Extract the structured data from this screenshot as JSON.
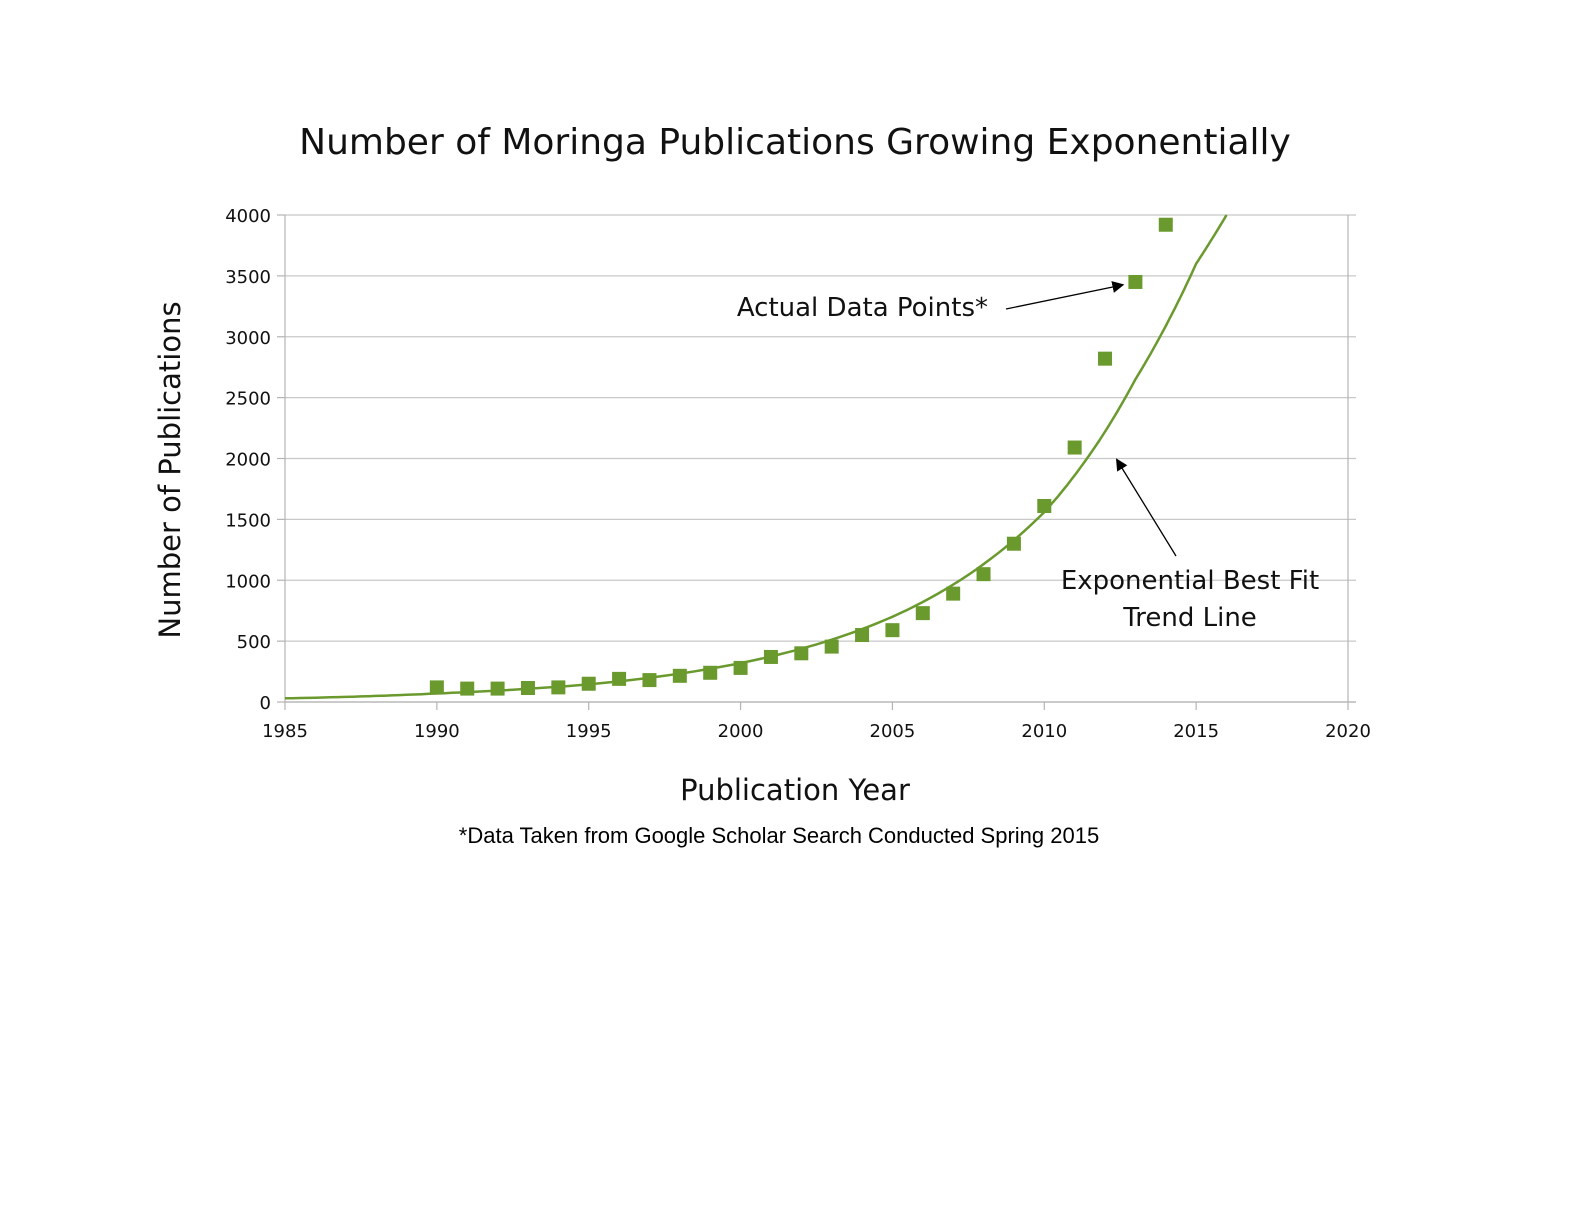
{
  "chart_data": {
    "type": "scatter",
    "title": "Number of Moringa Publications Growing Exponentially",
    "xlabel": "Publication Year",
    "ylabel": "Number of Publications",
    "xlim": [
      1985,
      2020
    ],
    "ylim": [
      0,
      4000
    ],
    "x_ticks": [
      "1985",
      "1990",
      "1995",
      "2000",
      "2005",
      "2010",
      "2015",
      "2020"
    ],
    "y_ticks": [
      "0",
      "500",
      "1000",
      "1500",
      "2000",
      "2500",
      "3000",
      "3500",
      "4000"
    ],
    "grid": true,
    "series": [
      {
        "x": [
          1990,
          1991,
          1992,
          1993,
          1994,
          1995,
          1996,
          1997,
          1998,
          1999,
          2000,
          2001,
          2002,
          2003,
          2004,
          2005,
          2006,
          2007,
          2008,
          2009,
          2010,
          2011,
          2012,
          2013,
          2014
        ],
        "y": [
          120,
          110,
          110,
          115,
          120,
          150,
          190,
          180,
          215,
          240,
          280,
          370,
          400,
          455,
          550,
          590,
          730,
          890,
          1050,
          1300,
          1610,
          2090,
          2820,
          3450,
          3920
        ],
        "color": "#6a9a2e",
        "marker": "square"
      }
    ],
    "trend_line": {
      "type": "exponential",
      "x": [
        1985,
        1990,
        1995,
        2000,
        2005,
        2010,
        2013,
        2015,
        2016
      ],
      "y": [
        30,
        70,
        145,
        320,
        700,
        1560,
        2650,
        3600,
        4000
      ],
      "color": "#6a9a2e"
    },
    "annotations": [
      {
        "text": "Actual Data Points*",
        "target_x": 2013,
        "target_y": 3450
      },
      {
        "text": "Exponential Best Fit",
        "text_line2": "Trend Line",
        "target_x": 2012,
        "target_y": 2070
      }
    ],
    "footnote": "*Data Taken from Google Scholar Search Conducted Spring 2015"
  }
}
